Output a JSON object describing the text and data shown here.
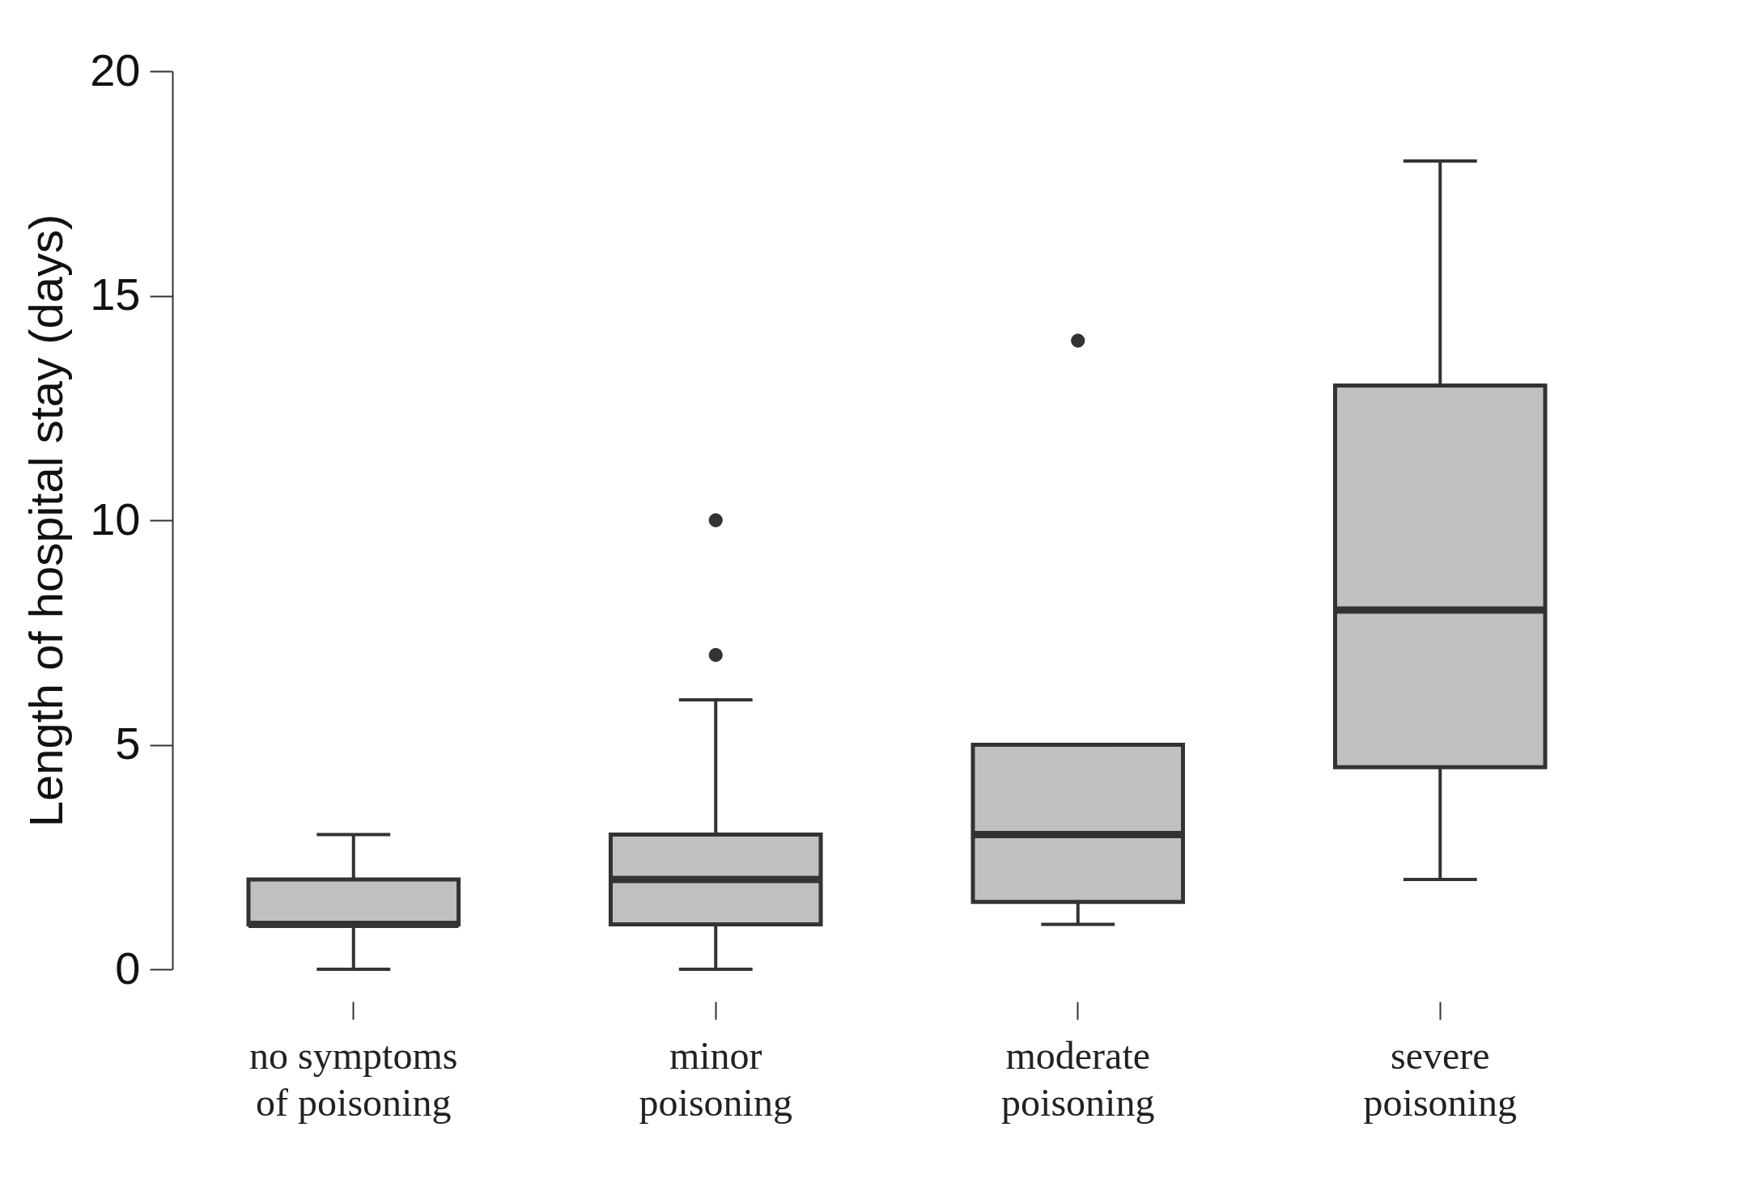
{
  "chart_data": {
    "type": "box",
    "ylabel": "Length of hospital stay (days)",
    "categories": [
      "no symptoms of poisoning",
      "minor poisoning",
      "moderate poisoning",
      "severe poisoning"
    ],
    "boxes": [
      {
        "low": 0,
        "q1": 1,
        "median": 1,
        "q3": 2,
        "high": 3
      },
      {
        "low": 0,
        "q1": 1,
        "median": 2,
        "q3": 3,
        "high": 6,
        "outliers": [
          7,
          10
        ]
      },
      {
        "low": 1,
        "q1": 1.5,
        "median": 3,
        "q3": 5,
        "high": 5,
        "outliers": [
          14
        ]
      },
      {
        "low": 2,
        "q1": 4.5,
        "median": 8,
        "q3": 13,
        "high": 18
      }
    ],
    "color": "#c0c0c0",
    "ylim": [
      0,
      20
    ],
    "yticks": [
      0,
      5,
      10,
      15,
      20
    ],
    "grid": false
  }
}
